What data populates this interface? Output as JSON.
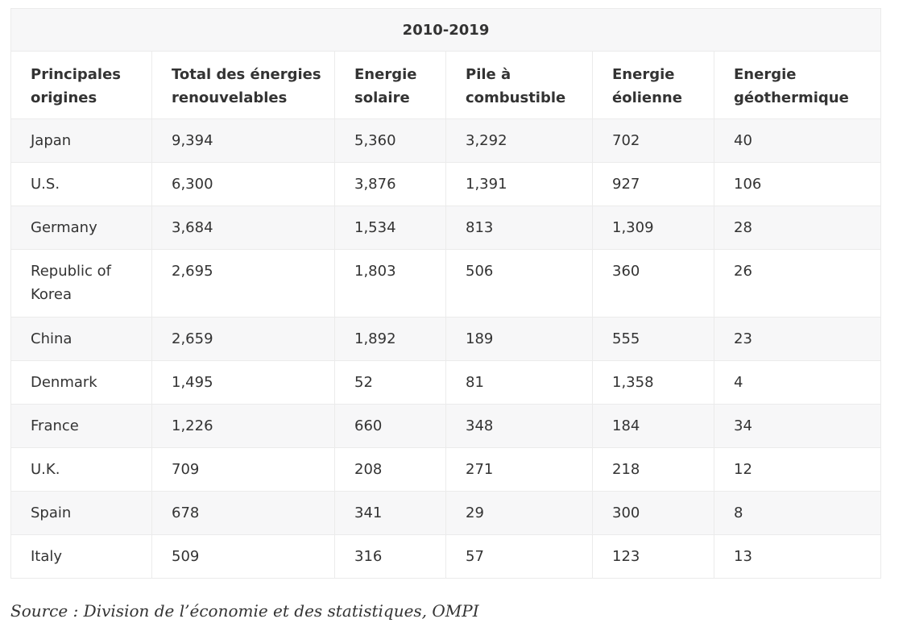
{
  "table": {
    "period": "2010-2019",
    "headers": [
      "Principales origines",
      "Total des énergies renouvelables",
      "Energie solaire",
      "Pile à combustible",
      "Energie éolienne",
      "Energie géothermique"
    ],
    "rows": [
      [
        "Japan",
        "9,394",
        "5,360",
        "3,292",
        "702",
        "40"
      ],
      [
        "U.S.",
        "6,300",
        "3,876",
        "1,391",
        "927",
        "106"
      ],
      [
        "Germany",
        "3,684",
        "1,534",
        "813",
        "1,309",
        "28"
      ],
      [
        "Republic of Korea",
        "2,695",
        "1,803",
        "506",
        "360",
        "26"
      ],
      [
        "China",
        "2,659",
        "1,892",
        "189",
        "555",
        "23"
      ],
      [
        "Denmark",
        "1,495",
        "52",
        "81",
        "1,358",
        "4"
      ],
      [
        "France",
        "1,226",
        "660",
        "348",
        "184",
        "34"
      ],
      [
        "U.K.",
        "709",
        "208",
        "271",
        "218",
        "12"
      ],
      [
        "Spain",
        "678",
        "341",
        "29",
        "300",
        "8"
      ],
      [
        "Italy",
        "509",
        "316",
        "57",
        "123",
        "13"
      ]
    ]
  },
  "source": "Source : Division de l’économie et des statistiques, OMPI"
}
